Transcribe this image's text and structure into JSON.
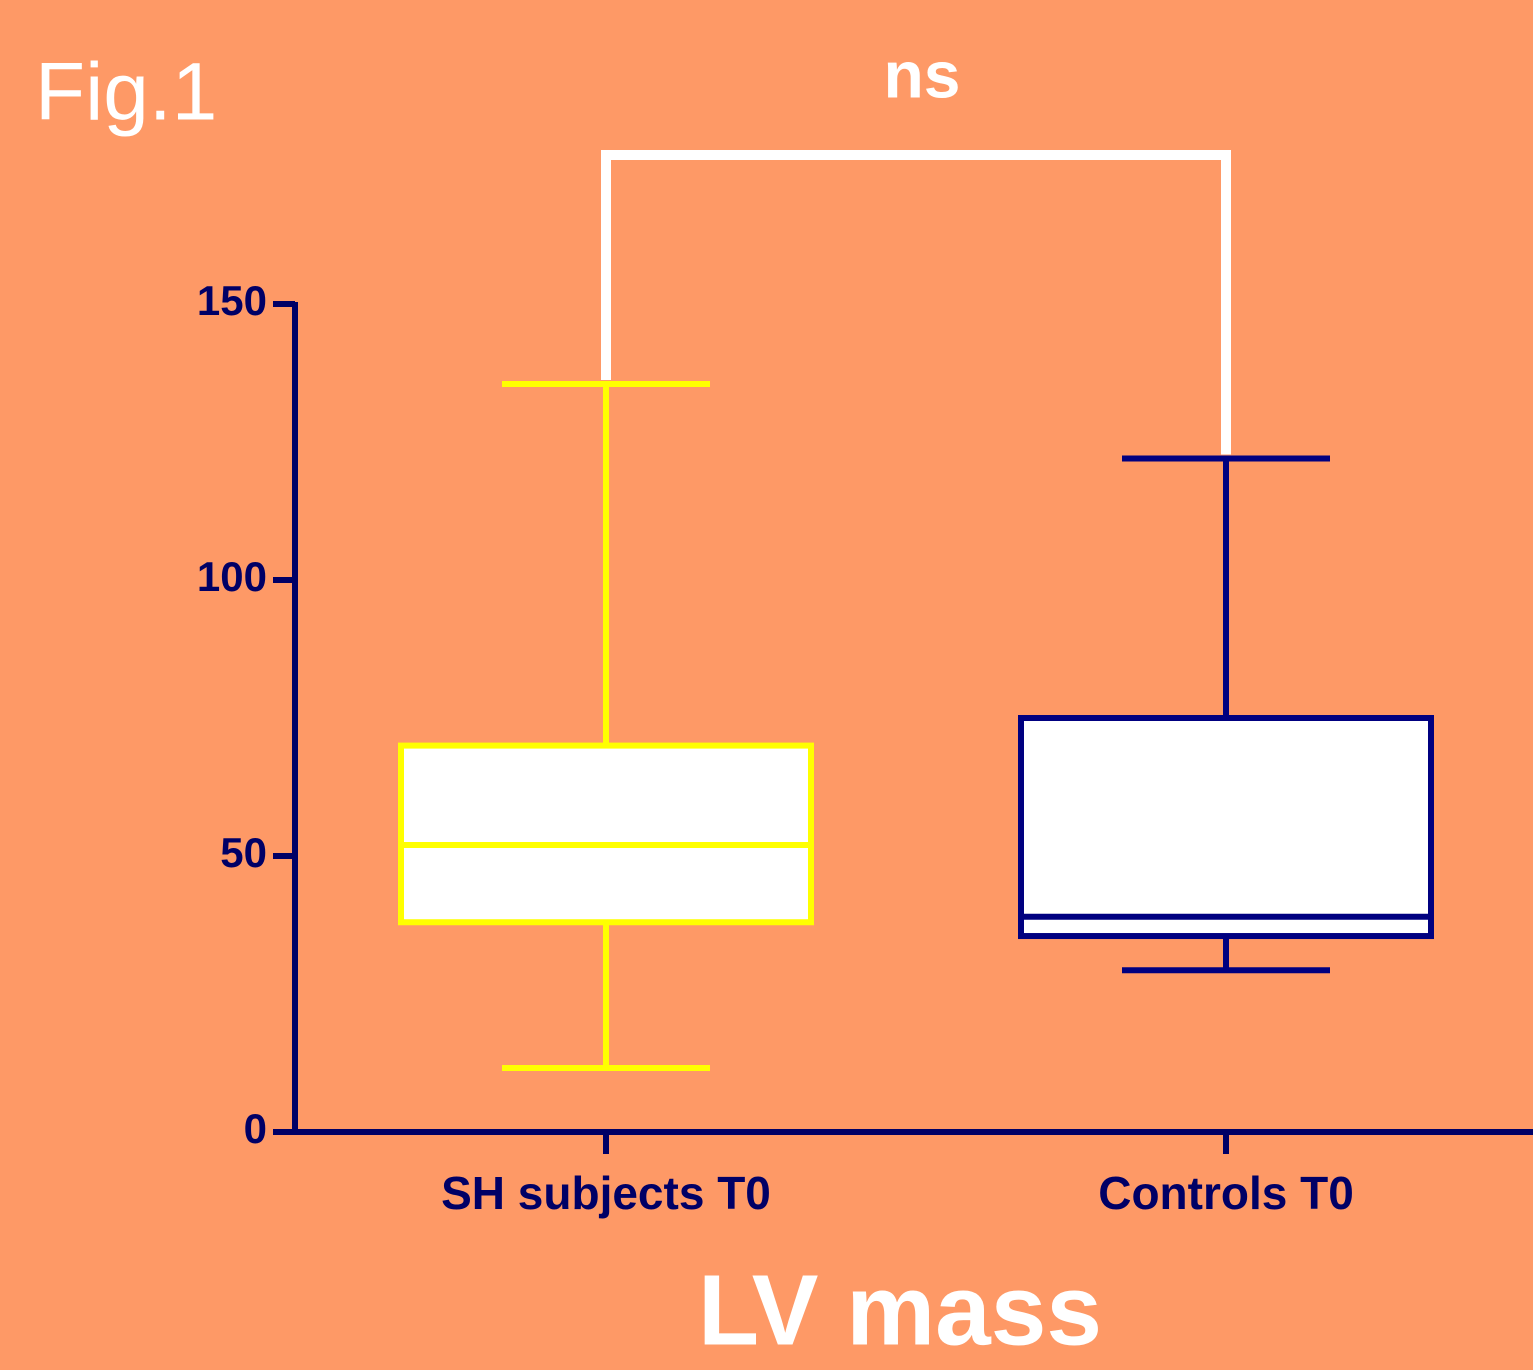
{
  "figure_label": "Fig.1",
  "chart_data": {
    "type": "box",
    "title": "LV mass",
    "annotation": "ns",
    "categories": [
      "SH subjects T0",
      "Controls T0"
    ],
    "boxes": [
      {
        "min": 11.6,
        "q1": 38,
        "median": 52,
        "q3": 70,
        "max": 135.5,
        "color": "#ffff00"
      },
      {
        "min": 29.3,
        "q1": 35.5,
        "median": 39,
        "q3": 75,
        "max": 122,
        "color": "#000080"
      }
    ],
    "ylim": [
      0,
      150
    ],
    "yticks": [
      0,
      50,
      100,
      150
    ],
    "axis_color": "#000066",
    "background": "#fe9966"
  }
}
